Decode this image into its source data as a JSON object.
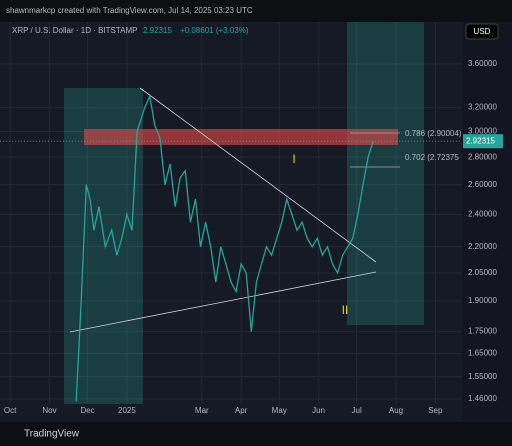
{
  "chart_data": {
    "type": "line",
    "credit": "shawnmarkcp created with TradingView.com, Jul 14, 2025 03:23 UTC",
    "title": "XRP / U.S. Dollar · 1D · BITSTAMP",
    "last_price": 2.92315,
    "last_price_label": "2.92315",
    "change_label": "+0.08601 (+3.03%)",
    "currency": "USD",
    "brand": "TradingView",
    "color": "#26a69a",
    "log": true,
    "grid": true,
    "x": [
      52,
      56,
      60,
      63,
      66,
      70,
      75,
      80,
      84,
      88,
      92,
      96,
      100,
      106,
      110,
      114,
      118,
      122,
      126,
      130,
      134,
      138,
      142,
      146,
      150,
      154,
      158,
      162,
      166,
      170,
      174,
      178,
      182,
      186,
      190,
      194,
      198,
      202,
      206,
      210,
      214,
      218,
      222,
      226,
      230,
      234,
      238,
      242,
      246,
      250,
      254,
      258,
      262,
      266,
      270,
      274,
      278,
      282,
      286
    ],
    "values": [
      1.45,
      1.9,
      2.6,
      2.5,
      2.3,
      2.45,
      2.2,
      2.3,
      2.15,
      2.25,
      2.4,
      2.3,
      3.0,
      3.2,
      3.3,
      3.05,
      2.95,
      2.6,
      2.75,
      2.45,
      2.65,
      2.7,
      2.35,
      2.5,
      2.2,
      2.35,
      2.2,
      2.0,
      2.2,
      2.1,
      2.0,
      1.95,
      2.1,
      2.05,
      1.75,
      2.0,
      2.1,
      2.2,
      2.15,
      2.25,
      2.35,
      2.5,
      2.4,
      2.3,
      2.35,
      2.25,
      2.2,
      2.25,
      2.15,
      2.2,
      2.1,
      2.05,
      2.15,
      2.2,
      2.25,
      2.4,
      2.6,
      2.8,
      2.92315
    ],
    "xlim": [
      -8,
      356
    ],
    "xticks": [
      {
        "value": 0,
        "label": "Oct"
      },
      {
        "value": 31,
        "label": "Nov"
      },
      {
        "value": 61,
        "label": "Dec"
      },
      {
        "value": 92,
        "label": "2025"
      },
      {
        "value": 151,
        "label": "Mar"
      },
      {
        "value": 182,
        "label": "Apr"
      },
      {
        "value": 212,
        "label": "May"
      },
      {
        "value": 243,
        "label": "Jun"
      },
      {
        "value": 273,
        "label": "Jul"
      },
      {
        "value": 304,
        "label": "Aug"
      },
      {
        "value": 335,
        "label": "Sep"
      }
    ],
    "ylim": [
      1.44,
      4.03
    ],
    "yticks": [
      {
        "value": 3.6,
        "label": "3.60000"
      },
      {
        "value": 3.2,
        "label": "3.20000"
      },
      {
        "value": 3.0,
        "label": "3.00000"
      },
      {
        "value": 2.8,
        "label": "2.80000"
      },
      {
        "value": 2.6,
        "label": "2.60000"
      },
      {
        "value": 2.4,
        "label": "2.40000"
      },
      {
        "value": 2.2,
        "label": "2.20000"
      },
      {
        "value": 2.05,
        "label": "2.05000"
      },
      {
        "value": 1.9,
        "label": "1.90000"
      },
      {
        "value": 1.75,
        "label": "1.75000"
      },
      {
        "value": 1.65,
        "label": "1.65000"
      },
      {
        "value": 1.55,
        "label": "1.55000"
      },
      {
        "value": 1.46,
        "label": "1.46000"
      }
    ],
    "fib_labels": [
      "0.786 (2.90004)",
      "0.702 (2.72375"
    ],
    "annotations": [
      "I",
      "II"
    ]
  }
}
